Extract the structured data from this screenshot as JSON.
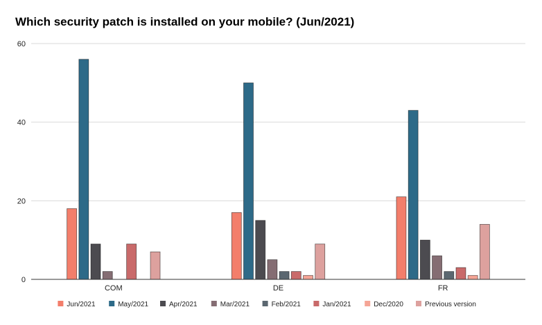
{
  "chart_data": {
    "type": "bar",
    "title": "Which security patch is installed on your mobile? (Jun/2021)",
    "xlabel": "",
    "ylabel": "",
    "categories": [
      "COM",
      "DE",
      "FR"
    ],
    "ylim": [
      0,
      60
    ],
    "yticks": [
      0,
      20,
      40,
      60
    ],
    "grid": true,
    "legend_position": "bottom",
    "series": [
      {
        "name": "Jun/2021",
        "color": "#F37E6B",
        "values": [
          18,
          17,
          21
        ]
      },
      {
        "name": "May/2021",
        "color": "#2D6A88",
        "values": [
          56,
          50,
          43
        ]
      },
      {
        "name": "Apr/2021",
        "color": "#4C4B50",
        "values": [
          9,
          15,
          10
        ]
      },
      {
        "name": "Mar/2021",
        "color": "#856D73",
        "values": [
          2,
          5,
          6
        ]
      },
      {
        "name": "Feb/2021",
        "color": "#5B6770",
        "values": [
          0,
          2,
          2
        ]
      },
      {
        "name": "Jan/2021",
        "color": "#C96A6A",
        "values": [
          9,
          2,
          3
        ]
      },
      {
        "name": "Dec/2020",
        "color": "#F5A596",
        "values": [
          0,
          1,
          1
        ]
      },
      {
        "name": "Previous version",
        "color": "#DDA19E",
        "values": [
          7,
          9,
          14
        ]
      }
    ]
  }
}
